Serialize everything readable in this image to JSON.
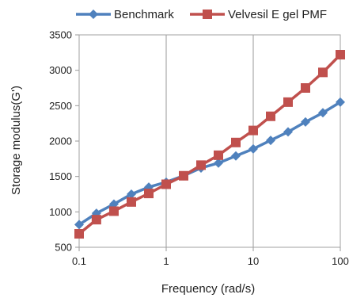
{
  "chart_data": {
    "type": "line",
    "x_scale": "log",
    "xlabel": "Frequency (rad/s)",
    "ylabel": "Storage modulus(G')",
    "xlim": [
      0.1,
      100
    ],
    "ylim": [
      500,
      3500
    ],
    "x_ticks": [
      "0.1",
      "1",
      "10",
      "100"
    ],
    "y_ticks": [
      "500",
      "1000",
      "1500",
      "2000",
      "2500",
      "3000",
      "3500"
    ],
    "grid": "vertical gridlines at decades",
    "legend": "top",
    "series": [
      {
        "name": "Benchmark",
        "color": "#4f81bd",
        "marker": "diamond",
        "x": [
          0.1,
          0.158,
          0.251,
          0.398,
          0.631,
          1,
          1.585,
          2.512,
          3.981,
          6.31,
          10,
          15.85,
          25.12,
          39.81,
          63.1,
          100
        ],
        "y": [
          820,
          980,
          1110,
          1250,
          1350,
          1420,
          1510,
          1620,
          1690,
          1790,
          1890,
          2010,
          2130,
          2270,
          2400,
          2550
        ]
      },
      {
        "name": "Velvesil E gel PMF",
        "color": "#c0504d",
        "marker": "square",
        "x": [
          0.1,
          0.158,
          0.251,
          0.398,
          0.631,
          1,
          1.585,
          2.512,
          3.981,
          6.31,
          10,
          15.85,
          25.12,
          39.81,
          63.1,
          100
        ],
        "y": [
          690,
          890,
          1010,
          1140,
          1260,
          1390,
          1510,
          1660,
          1800,
          1980,
          2150,
          2350,
          2550,
          2750,
          2970,
          3220
        ]
      }
    ]
  }
}
